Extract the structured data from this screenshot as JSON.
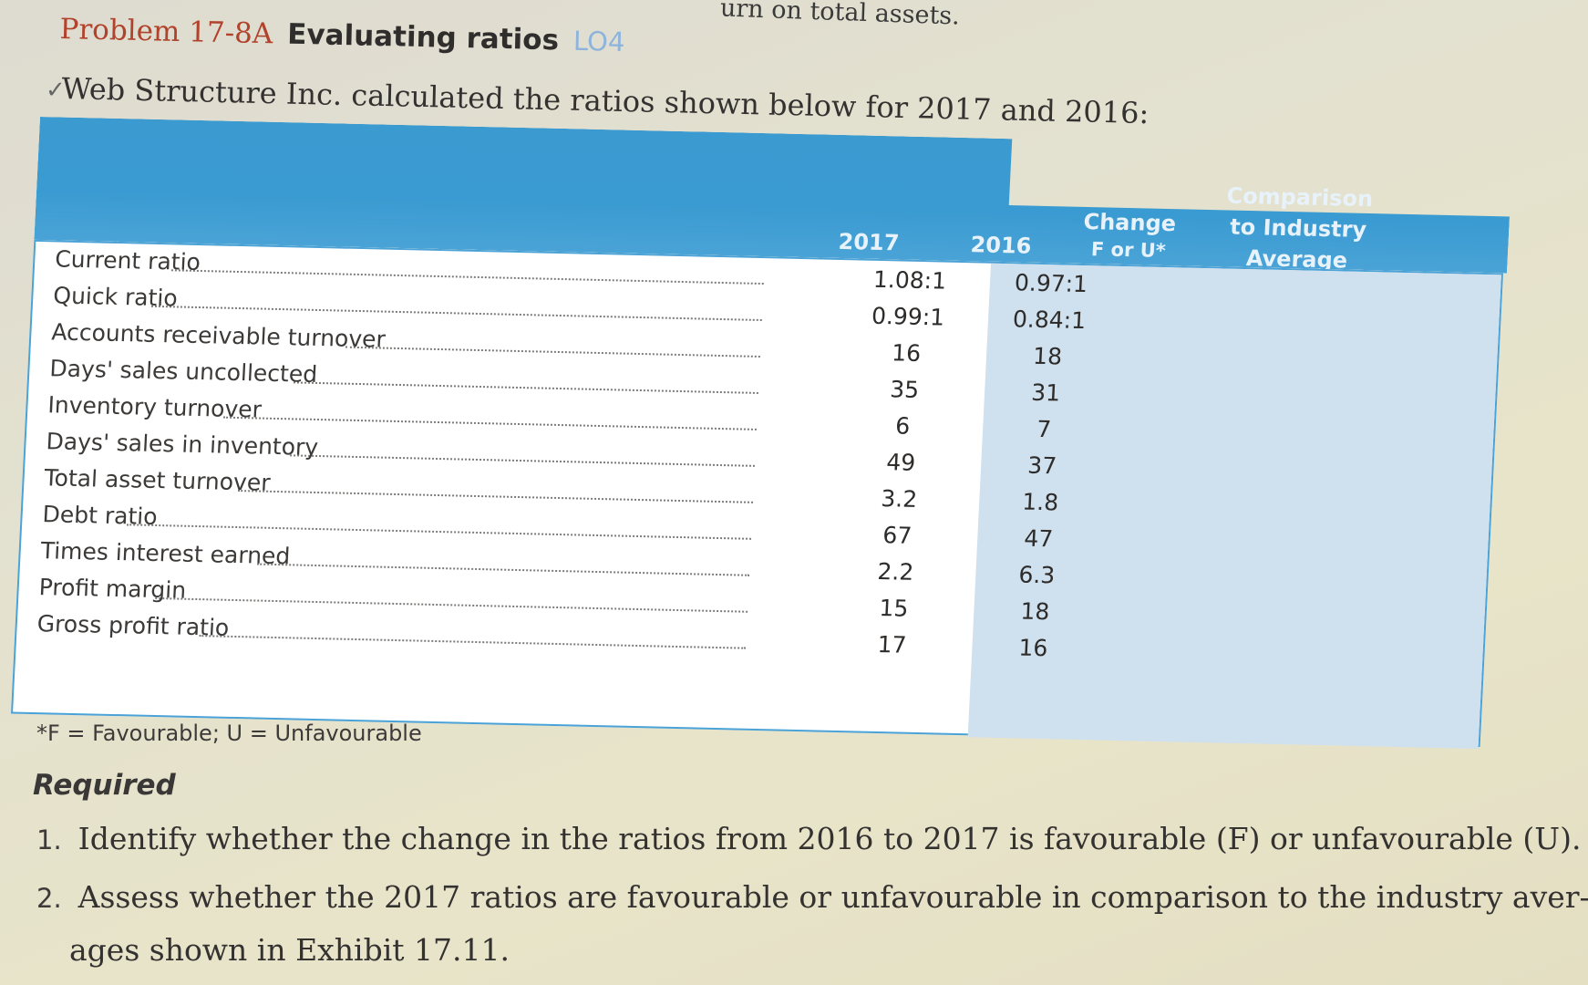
{
  "top_fragment": "urn on total assets.",
  "problem": {
    "number": "Problem 17-8A",
    "title": "Evaluating ratios",
    "lo": "LO4"
  },
  "intro": "Web Structure Inc. calculated the ratios shown below for 2017 and 2016:",
  "table": {
    "headers": {
      "y2017": "2017",
      "y2016": "2016",
      "change_l1": "Change",
      "change_l2": "F or U*",
      "comp_l1": "Comparison",
      "comp_l2": "to Industry",
      "comp_l3": "Average"
    },
    "rows": [
      {
        "label": "Current ratio",
        "v2017": "1.08:1",
        "v2016": "0.97:1"
      },
      {
        "label": "Quick ratio",
        "v2017": "0.99:1",
        "v2016": "0.84:1"
      },
      {
        "label": "Accounts receivable turnover",
        "v2017": "16",
        "v2016": "18"
      },
      {
        "label": "Days' sales uncollected",
        "v2017": "35",
        "v2016": "31"
      },
      {
        "label": "Inventory turnover",
        "v2017": "6",
        "v2016": "7"
      },
      {
        "label": "Days' sales in inventory",
        "v2017": "49",
        "v2016": "37"
      },
      {
        "label": "Total asset turnover",
        "v2017": "3.2",
        "v2016": "1.8"
      },
      {
        "label": "Debt ratio",
        "v2017": "67",
        "v2016": "47"
      },
      {
        "label": "Times interest earned",
        "v2017": "2.2",
        "v2016": "6.3"
      },
      {
        "label": "Profit margin",
        "v2017": "15",
        "v2016": "18"
      },
      {
        "label": "Gross profit ratio",
        "v2017": "17",
        "v2016": "16"
      }
    ]
  },
  "footnote": "*F = Favourable; U = Unfavourable",
  "required": {
    "heading": "Required",
    "items": [
      {
        "num": "1.",
        "text": "Identify whether the change in the ratios from 2016 to 2017 is favourable (F) or unfavourable (U)."
      },
      {
        "num": "2.",
        "text": "Assess whether the 2017 ratios are favourable or unfavourable in comparison to the industry aver-",
        "cont": "ages shown in Exhibit 17.11."
      }
    ]
  },
  "colors": {
    "header_blue": "#3a9bd2",
    "problem_red": "#b1422b",
    "lo_blue": "#8eb4dc"
  }
}
